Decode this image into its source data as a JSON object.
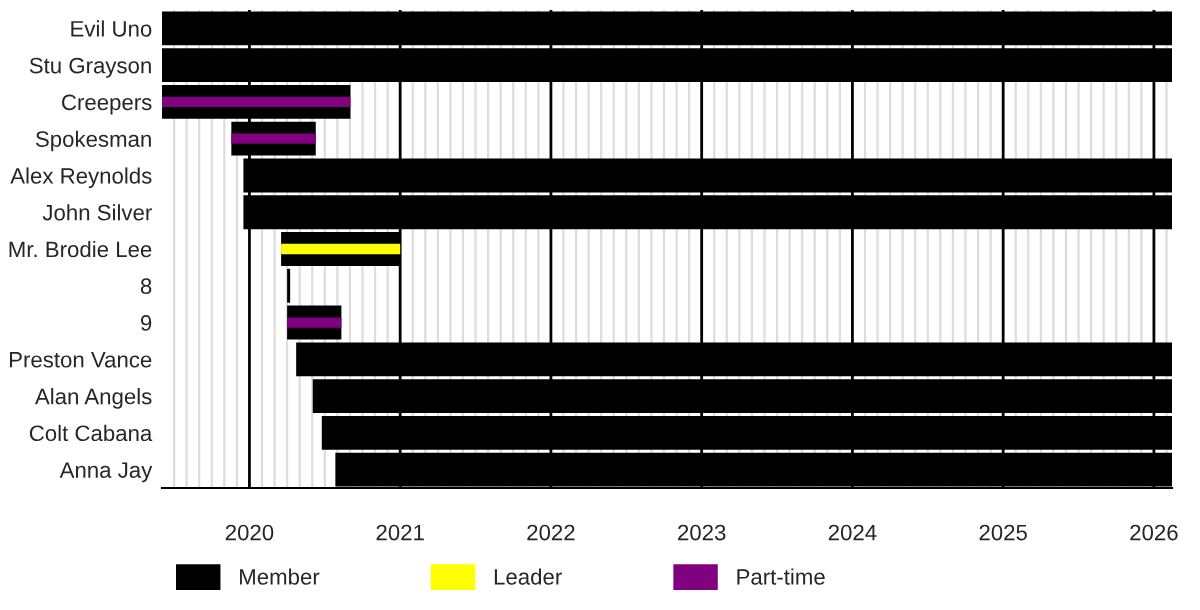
{
  "chart_data": {
    "type": "bar",
    "orientation": "horizontal",
    "categories": [
      "Evil Uno",
      "Stu Grayson",
      "Creepers",
      "Spokesman",
      "Alex Reynolds",
      "John Silver",
      "Mr. Brodie Lee",
      "8",
      "9",
      "Preston Vance",
      "Alan Angels",
      "Colt Cabana",
      "Anna Jay"
    ],
    "series": [
      {
        "name": "Member",
        "color": "#000000",
        "base": [
          2019.42,
          2019.42,
          2019.42,
          2019.88,
          2019.96,
          2019.96,
          2020.21,
          2020.25,
          2020.25,
          2020.31,
          2020.42,
          2020.48,
          2020.57
        ],
        "values": [
          6.7,
          6.7,
          1.25,
          0.56,
          6.16,
          6.16,
          0.79,
          0.02,
          0.36,
          5.81,
          5.7,
          5.64,
          5.55
        ]
      },
      {
        "name": "Leader",
        "color": "#ffff00",
        "base": [
          null,
          null,
          null,
          null,
          null,
          null,
          2020.21,
          null,
          null,
          null,
          null,
          null,
          null
        ],
        "values": [
          null,
          null,
          null,
          null,
          null,
          null,
          0.79,
          null,
          null,
          null,
          null,
          null,
          null
        ]
      },
      {
        "name": "Part-time",
        "color": "#800080",
        "base": [
          null,
          null,
          2019.42,
          2019.88,
          null,
          null,
          null,
          null,
          2020.25,
          null,
          null,
          null,
          null
        ],
        "values": [
          null,
          null,
          1.25,
          0.56,
          null,
          null,
          null,
          null,
          0.36,
          null,
          null,
          null,
          null
        ]
      }
    ],
    "xlim": [
      2019.42,
      2026.12
    ],
    "xticks": [
      2020,
      2021,
      2022,
      2023,
      2024,
      2025,
      2026
    ],
    "grid": "x",
    "legend": "bottom"
  }
}
